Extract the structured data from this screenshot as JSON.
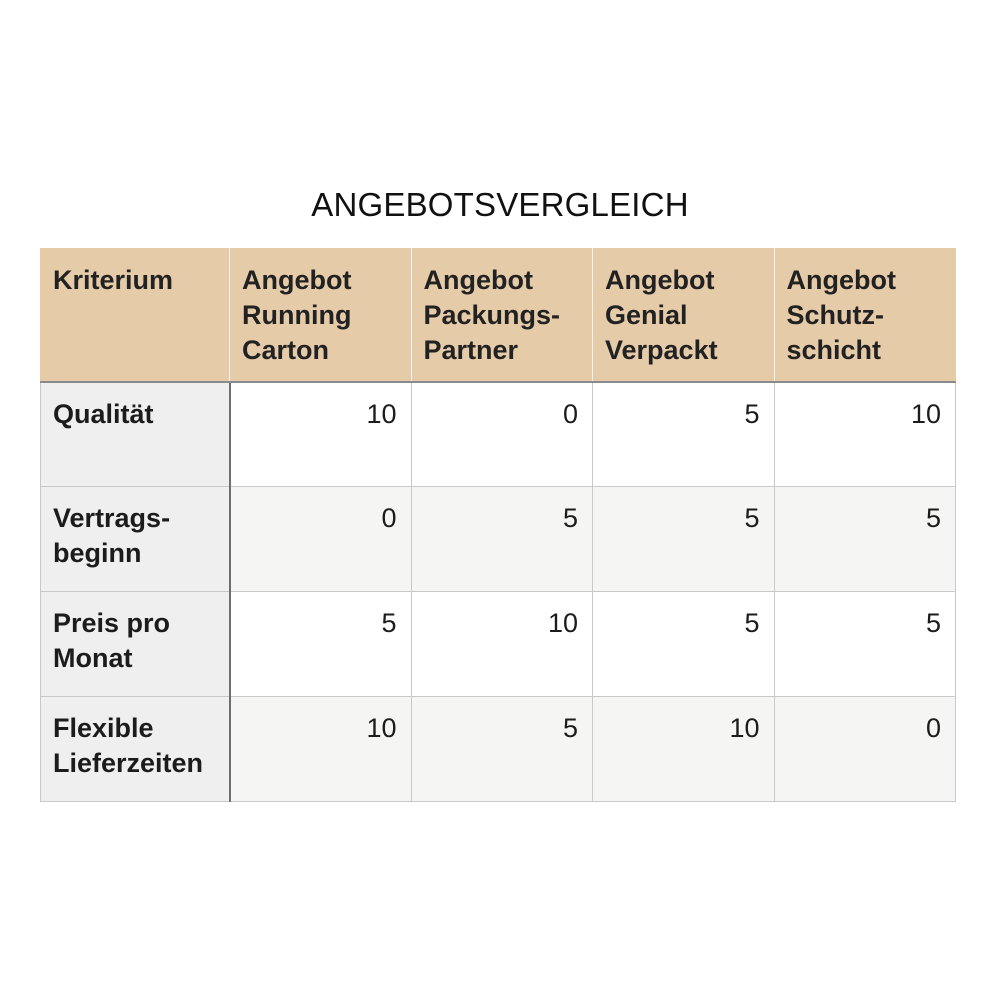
{
  "title": "ANGEBOTSVERGLEICH",
  "headers": [
    [
      "Kriterium"
    ],
    [
      "Angebot",
      "Running",
      "Carton"
    ],
    [
      "Angebot",
      "Packungs-",
      "Partner"
    ],
    [
      "Angebot",
      "Genial",
      "Verpackt"
    ],
    [
      "Angebot",
      "Schutz-",
      "schicht"
    ]
  ],
  "rows": [
    {
      "criterion": [
        "Qualität"
      ],
      "values": [
        "10",
        "0",
        "5",
        "10"
      ]
    },
    {
      "criterion": [
        "Vertrags-",
        "beginn"
      ],
      "values": [
        "0",
        "5",
        "5",
        "5"
      ]
    },
    {
      "criterion": [
        "Preis pro",
        "Monat"
      ],
      "values": [
        "5",
        "10",
        "5",
        "5"
      ]
    },
    {
      "criterion": [
        "Flexible",
        "Lieferzeiten"
      ],
      "values": [
        "10",
        "5",
        "10",
        "0"
      ]
    }
  ]
}
